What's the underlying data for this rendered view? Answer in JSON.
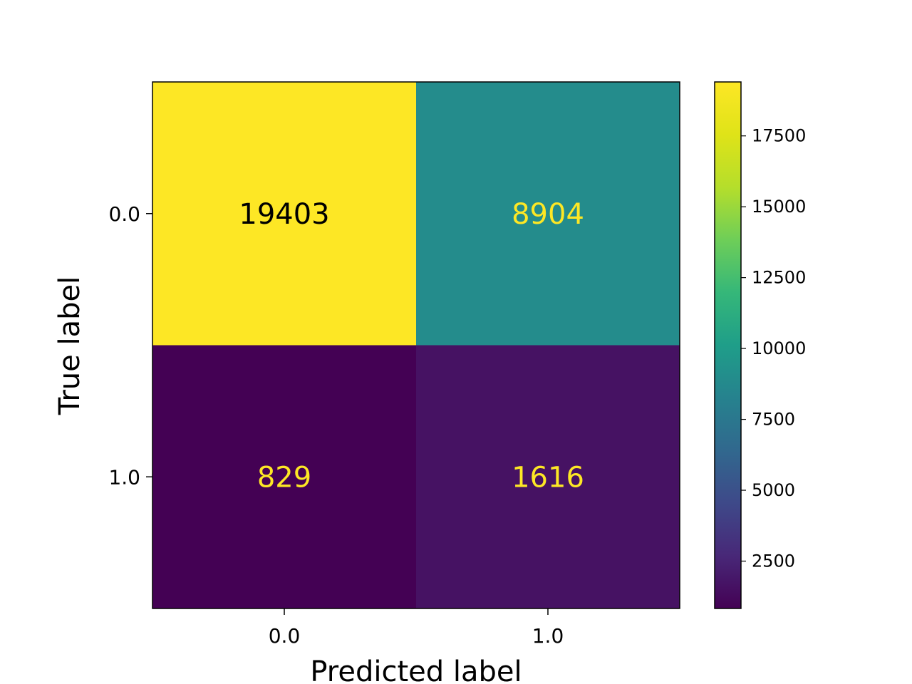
{
  "chart_data": {
    "type": "heatmap",
    "title": "",
    "xlabel": "Predicted label",
    "ylabel": "True label",
    "x_tick_labels": [
      "0.0",
      "1.0"
    ],
    "y_tick_labels": [
      "0.0",
      "1.0"
    ],
    "values": [
      [
        19403,
        8904
      ],
      [
        829,
        1616
      ]
    ],
    "cell_labels": [
      [
        "19403",
        "8904"
      ],
      [
        "829",
        "1616"
      ]
    ],
    "colormap": "viridis",
    "colorbar": {
      "range": [
        829,
        19403
      ],
      "ticks": [
        2500,
        5000,
        7500,
        10000,
        12500,
        15000,
        17500
      ],
      "tick_labels": [
        "2500",
        "5000",
        "7500",
        "10000",
        "12500",
        "15000",
        "17500"
      ]
    },
    "text_colors": {
      "dark_cell": "#fde725",
      "light_cell": "#000000"
    },
    "grid": false
  }
}
